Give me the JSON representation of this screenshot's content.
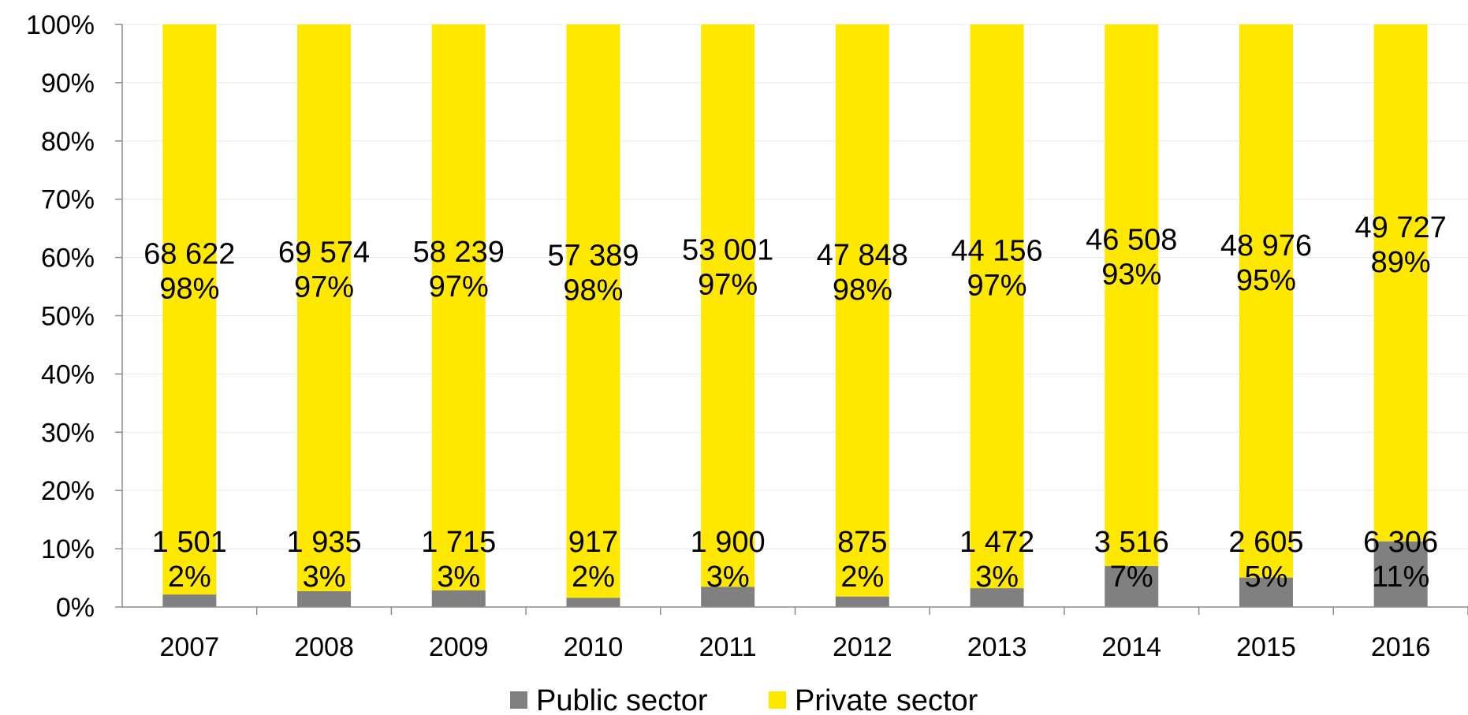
{
  "chart_data": {
    "type": "bar",
    "stacked": true,
    "normalized": true,
    "categories": [
      "2007",
      "2008",
      "2009",
      "2010",
      "2011",
      "2012",
      "2013",
      "2014",
      "2015",
      "2016"
    ],
    "series": [
      {
        "name": "Public sector",
        "color": "#808080",
        "values": [
          1501,
          1935,
          1715,
          917,
          1900,
          875,
          1472,
          3516,
          2605,
          6306
        ],
        "value_labels": [
          "1 501",
          "1 935",
          "1 715",
          "917",
          "1 900",
          "875",
          "1 472",
          "3 516",
          "2 605",
          "6 306"
        ],
        "percent_labels": [
          "2%",
          "3%",
          "3%",
          "2%",
          "3%",
          "2%",
          "3%",
          "7%",
          "5%",
          "11%"
        ]
      },
      {
        "name": "Private sector",
        "color": "#FFE800",
        "values": [
          68622,
          69574,
          58239,
          57389,
          53001,
          47848,
          44156,
          46508,
          48976,
          49727
        ],
        "value_labels": [
          "68 622",
          "69 574",
          "58 239",
          "57 389",
          "53 001",
          "47 848",
          "44 156",
          "46 508",
          "48 976",
          "49 727"
        ],
        "percent_labels": [
          "98%",
          "97%",
          "97%",
          "98%",
          "97%",
          "98%",
          "97%",
          "93%",
          "95%",
          "89%"
        ]
      }
    ],
    "y_ticks": [
      "0%",
      "10%",
      "20%",
      "30%",
      "40%",
      "50%",
      "60%",
      "70%",
      "80%",
      "90%",
      "100%"
    ],
    "ylim": [
      0,
      100
    ],
    "grid": true,
    "legend_position": "bottom-center"
  }
}
